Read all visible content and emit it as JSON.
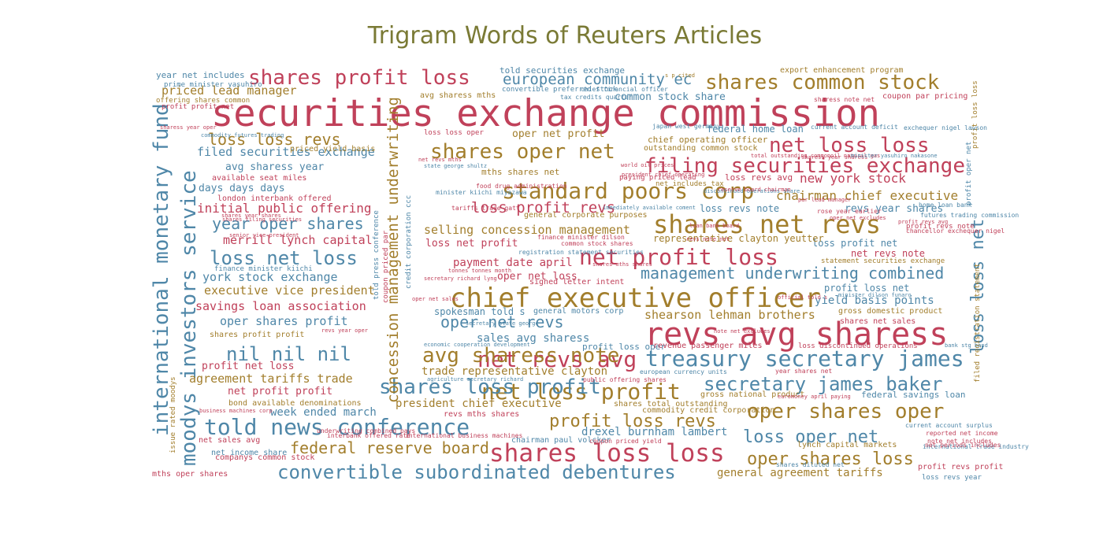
{
  "chart_data": {
    "type": "wordcloud",
    "title": "Trigram Words of Reuters Articles",
    "colors": {
      "red": "#c0415a",
      "gold": "#a27e2c",
      "blue": "#4f87a8"
    },
    "words": [
      {
        "text": "securities exchange commission",
        "color": "red"
      },
      {
        "text": "revs avg sharess",
        "color": "red"
      },
      {
        "text": "chief executive officer",
        "color": "gold"
      },
      {
        "text": "shares net revs",
        "color": "gold"
      },
      {
        "text": "shares loss loss",
        "color": "red"
      },
      {
        "text": "net profit loss",
        "color": "red"
      },
      {
        "text": "told news conference",
        "color": "blue"
      },
      {
        "text": "net loss profit",
        "color": "gold"
      },
      {
        "text": "treasury secretary james",
        "color": "blue"
      },
      {
        "text": "net revs avg",
        "color": "red"
      },
      {
        "text": "standard poors corp",
        "color": "gold"
      },
      {
        "text": "shares common stock",
        "color": "gold"
      },
      {
        "text": "shares profit loss",
        "color": "red"
      },
      {
        "text": "net loss loss",
        "color": "red"
      },
      {
        "text": "filing securities exchange",
        "color": "red"
      },
      {
        "text": "shares oper net",
        "color": "gold"
      },
      {
        "text": "avg sharess note",
        "color": "gold"
      },
      {
        "text": "shares loss profit",
        "color": "blue"
      },
      {
        "text": "moodys investors service",
        "color": "blue"
      },
      {
        "text": "international monetary fund",
        "color": "blue"
      },
      {
        "text": "oper shares oper",
        "color": "gold"
      },
      {
        "text": "secretary james baker",
        "color": "blue"
      },
      {
        "text": "convertible subordinated debentures",
        "color": "blue"
      },
      {
        "text": "loss net loss",
        "color": "blue"
      },
      {
        "text": "nil nil nil",
        "color": "blue"
      },
      {
        "text": "loss oper net",
        "color": "blue"
      },
      {
        "text": "oper shares loss",
        "color": "gold"
      },
      {
        "text": "loss loss net",
        "color": "blue"
      },
      {
        "text": "profit loss revs",
        "color": "gold"
      },
      {
        "text": "federal reserve board",
        "color": "gold"
      },
      {
        "text": "loss loss revs",
        "color": "gold"
      },
      {
        "text": "year oper shares",
        "color": "blue"
      },
      {
        "text": "oper net revs",
        "color": "blue"
      },
      {
        "text": "management underwriting combined",
        "color": "blue"
      },
      {
        "text": "european community ec",
        "color": "blue"
      },
      {
        "text": "loss profit revs",
        "color": "red"
      },
      {
        "text": "concession management underwriting",
        "color": "gold"
      },
      {
        "text": "chairman chief executive",
        "color": "gold"
      },
      {
        "text": "new york stock",
        "color": "red"
      },
      {
        "text": "initial public offering",
        "color": "red"
      },
      {
        "text": "filed securities exchange",
        "color": "blue"
      },
      {
        "text": "selling concession management",
        "color": "gold"
      },
      {
        "text": "shearson lehman brothers",
        "color": "gold"
      },
      {
        "text": "executive vice president",
        "color": "gold"
      },
      {
        "text": "york stock exchange",
        "color": "blue"
      },
      {
        "text": "merrill lynch capital",
        "color": "red"
      },
      {
        "text": "agreement tariffs trade",
        "color": "gold"
      },
      {
        "text": "oper shares profit",
        "color": "blue"
      },
      {
        "text": "savings loan association",
        "color": "red"
      },
      {
        "text": "priced lead manager",
        "color": "gold"
      },
      {
        "text": "trade representative clayton",
        "color": "gold"
      },
      {
        "text": "president chief executive",
        "color": "gold"
      },
      {
        "text": "general agreement tariffs",
        "color": "gold"
      },
      {
        "text": "drexel burnham lambert",
        "color": "blue"
      },
      {
        "text": "payment date april",
        "color": "red"
      },
      {
        "text": "yield basis points",
        "color": "blue"
      },
      {
        "text": "sales avg sharess",
        "color": "blue"
      },
      {
        "text": "week ended march",
        "color": "blue"
      },
      {
        "text": "common stock share",
        "color": "blue"
      },
      {
        "text": "oper net profit",
        "color": "gold"
      },
      {
        "text": "days days days",
        "color": "blue"
      },
      {
        "text": "avg sharess year",
        "color": "blue"
      },
      {
        "text": "profit net loss",
        "color": "red"
      },
      {
        "text": "net profit profit",
        "color": "red"
      },
      {
        "text": "loss net profit",
        "color": "red"
      },
      {
        "text": "oper net loss",
        "color": "red"
      },
      {
        "text": "revs year shares",
        "color": "blue"
      },
      {
        "text": "loss revs note",
        "color": "blue"
      },
      {
        "text": "loss profit net",
        "color": "blue"
      },
      {
        "text": "net revs note",
        "color": "red"
      },
      {
        "text": "profit loss net",
        "color": "blue"
      },
      {
        "text": "spokesman told s",
        "color": "blue"
      },
      {
        "text": "representative clayton yeutter",
        "color": "gold"
      },
      {
        "text": "federal home loan",
        "color": "blue"
      },
      {
        "text": "chief operating officer",
        "color": "gold"
      },
      {
        "text": "mths shares net",
        "color": "gold"
      },
      {
        "text": "loss revs avg",
        "color": "red"
      },
      {
        "text": "profit loss oper",
        "color": "blue"
      },
      {
        "text": "federal savings loan",
        "color": "blue"
      },
      {
        "text": "year net includes",
        "color": "blue"
      },
      {
        "text": "told securities exchange",
        "color": "blue"
      },
      {
        "text": "export enhancement program",
        "color": "gold"
      },
      {
        "text": "coupon par pricing",
        "color": "red"
      },
      {
        "text": "priced yield basis",
        "color": "gold"
      },
      {
        "text": "available seat miles",
        "color": "red"
      },
      {
        "text": "london interbank offered",
        "color": "red"
      },
      {
        "text": "companys common stock",
        "color": "red"
      },
      {
        "text": "bond available denominations",
        "color": "gold"
      },
      {
        "text": "revenue passenger miles",
        "color": "red"
      },
      {
        "text": "gross domestic product",
        "color": "gold"
      },
      {
        "text": "general motors corp",
        "color": "blue"
      },
      {
        "text": "signed letter intent",
        "color": "red"
      },
      {
        "text": "general corporate purposes",
        "color": "gold"
      },
      {
        "text": "mths oper shares",
        "color": "red"
      },
      {
        "text": "outstanding common stock",
        "color": "gold"
      },
      {
        "text": "avg sharess mths",
        "color": "gold"
      },
      {
        "text": "lynch capital markets",
        "color": "gold"
      },
      {
        "text": "gross national product",
        "color": "gold"
      },
      {
        "text": "commodity credit corporation",
        "color": "gold"
      },
      {
        "text": "shares total outstanding",
        "color": "gold"
      },
      {
        "text": "revs mths shares",
        "color": "red"
      },
      {
        "text": "net sales avg",
        "color": "red"
      },
      {
        "text": "net income share",
        "color": "blue"
      },
      {
        "text": "chairman paul volcker",
        "color": "blue"
      },
      {
        "text": "shares profit profit",
        "color": "gold"
      },
      {
        "text": "shares net sales",
        "color": "red"
      },
      {
        "text": "profit revs profit",
        "color": "red"
      },
      {
        "text": "loss revs year",
        "color": "blue"
      },
      {
        "text": "profit revs note",
        "color": "red"
      },
      {
        "text": "profit oper net",
        "color": "blue"
      },
      {
        "text": "profit loss loss",
        "color": "gold"
      },
      {
        "text": "convertible preferred stock",
        "color": "blue"
      },
      {
        "text": "prime minister yasuhiro",
        "color": "blue"
      },
      {
        "text": "offering shares common",
        "color": "gold"
      },
      {
        "text": "profit profit net",
        "color": "red"
      },
      {
        "text": "finance minister kiichi",
        "color": "blue"
      },
      {
        "text": "paying priced lead",
        "color": "red"
      },
      {
        "text": "net includes tax",
        "color": "gold"
      },
      {
        "text": "loss loss oper",
        "color": "red"
      },
      {
        "text": "loss discontinued operations",
        "color": "red"
      },
      {
        "text": "statement securities exchange",
        "color": "gold"
      },
      {
        "text": "filed registration statement",
        "color": "gold"
      },
      {
        "text": "issue rated moodys",
        "color": "gold"
      },
      {
        "text": "told press conference",
        "color": "blue"
      },
      {
        "text": "coupon priced par",
        "color": "red"
      },
      {
        "text": "credit corporation ccc",
        "color": "blue"
      },
      {
        "text": "food drug administration",
        "color": "red"
      },
      {
        "text": "minister kiichi miyazawa",
        "color": "blue"
      },
      {
        "text": "tariffs trade gatt",
        "color": "red"
      },
      {
        "text": "finance minister dilson",
        "color": "red"
      },
      {
        "text": "common stock shares",
        "color": "red"
      },
      {
        "text": "registration statement securities",
        "color": "blue"
      },
      {
        "text": "underwriting combined pays",
        "color": "red"
      },
      {
        "text": "interbank offered rate",
        "color": "red"
      },
      {
        "text": "international business machines",
        "color": "red"
      },
      {
        "text": "coupon priced yield",
        "color": "red"
      },
      {
        "text": "public offering shares",
        "color": "red"
      },
      {
        "text": "european currency units",
        "color": "blue"
      },
      {
        "text": "current account deficit",
        "color": "blue"
      },
      {
        "text": "home loan bank",
        "color": "blue"
      },
      {
        "text": "current account surplus",
        "color": "blue"
      },
      {
        "text": "reported net income",
        "color": "red"
      },
      {
        "text": "note net includes",
        "color": "red"
      },
      {
        "text": "international trade industry",
        "color": "blue"
      },
      {
        "text": "net periods includes",
        "color": "red"
      },
      {
        "text": "shares diluted net",
        "color": "blue"
      },
      {
        "text": "year shares net",
        "color": "red"
      },
      {
        "text": "rose year earlier",
        "color": "red"
      },
      {
        "text": "futures trading commission",
        "color": "blue"
      },
      {
        "text": "chancellor exchequer nigel",
        "color": "red"
      },
      {
        "text": "chief financial officer",
        "color": "blue"
      },
      {
        "text": "tax credits quarter",
        "color": "blue"
      },
      {
        "text": "sharess note net",
        "color": "red"
      },
      {
        "text": "japan west germany",
        "color": "blue"
      },
      {
        "text": "exchequer nigel lawson",
        "color": "blue"
      },
      {
        "text": "s p cited",
        "color": "gold"
      },
      {
        "text": "world oil prices",
        "color": "red"
      },
      {
        "text": "president chief operating",
        "color": "red"
      },
      {
        "text": "state george shultz",
        "color": "blue"
      },
      {
        "text": "commodity futures trading",
        "color": "blue"
      },
      {
        "text": "sharess year oper",
        "color": "red"
      },
      {
        "text": "bank stg band",
        "color": "blue"
      },
      {
        "text": "economic cooperation development",
        "color": "blue"
      },
      {
        "text": "agriculture secretary richard",
        "color": "blue"
      },
      {
        "text": "secretary richard lyng",
        "color": "red"
      },
      {
        "text": "tonnes tonnes month",
        "color": "red"
      },
      {
        "text": "loan bank board",
        "color": "red"
      },
      {
        "text": "euromoney april paying",
        "color": "red"
      },
      {
        "text": "business machines corp",
        "color": "red"
      },
      {
        "text": "senior vice president",
        "color": "red"
      },
      {
        "text": "official told s",
        "color": "red"
      },
      {
        "text": "discontinued operations share",
        "color": "blue"
      },
      {
        "text": "shares year shares",
        "color": "red"
      },
      {
        "text": "shares filing securities",
        "color": "red"
      },
      {
        "text": "net revs mths",
        "color": "red"
      },
      {
        "text": "note net excludes",
        "color": "red"
      },
      {
        "text": "shares mths shares",
        "color": "red"
      },
      {
        "text": "minister dilson funaro",
        "color": "blue"
      },
      {
        "text": "secretary state george",
        "color": "blue"
      },
      {
        "text": "revs year oper",
        "color": "red"
      },
      {
        "text": "oper net sales",
        "color": "red"
      },
      {
        "text": "immediately available coment",
        "color": "blue"
      },
      {
        "text": "revs note net",
        "color": "red"
      },
      {
        "text": "total outstanding common",
        "color": "red"
      },
      {
        "text": "reserve board chairman",
        "color": "red"
      },
      {
        "text": "sharess year sharess",
        "color": "red"
      },
      {
        "text": "oil natural gas",
        "color": "red"
      },
      {
        "text": "minister yasuhiro nakasone",
        "color": "blue"
      },
      {
        "text": "par lead manager",
        "color": "red"
      },
      {
        "text": "oper net excludes",
        "color": "red"
      },
      {
        "text": "profit revs avg",
        "color": "red"
      },
      {
        "text": "profit net revs",
        "color": "red"
      }
    ]
  }
}
